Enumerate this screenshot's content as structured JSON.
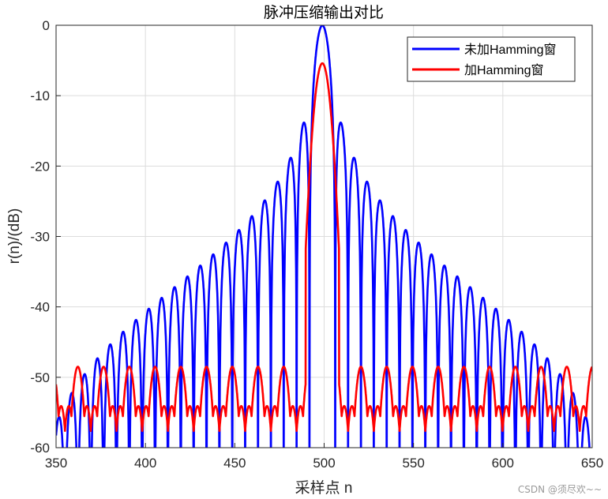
{
  "chart_data": {
    "type": "line",
    "title": "脉冲压缩输出对比",
    "xlabel": "采样点 n",
    "ylabel": "r(n)/(dB)",
    "xlim": [
      350,
      650
    ],
    "ylim": [
      -60,
      0
    ],
    "xticks": [
      350,
      400,
      450,
      500,
      550,
      600,
      650
    ],
    "yticks": [
      0,
      -10,
      -20,
      -30,
      -40,
      -50,
      -60
    ],
    "grid": true,
    "legend_position": "top-right",
    "series": [
      {
        "name": "未加Hamming窗",
        "color": "#0000ff",
        "peak_x": 499,
        "peak_db": 0,
        "lobe_width": 7.2,
        "first_sidelobe_db": -13.5,
        "edge_sidelobe_db": -39
      },
      {
        "name": "加Hamming窗",
        "color": "#ff0000",
        "peak_x": 499,
        "peak_db": -5.4,
        "lobe_width": 7.2,
        "sidelobe_floor_db": -48.5,
        "null_depth_db": -58
      }
    ]
  },
  "watermark": "CSDN @须尽欢~~"
}
